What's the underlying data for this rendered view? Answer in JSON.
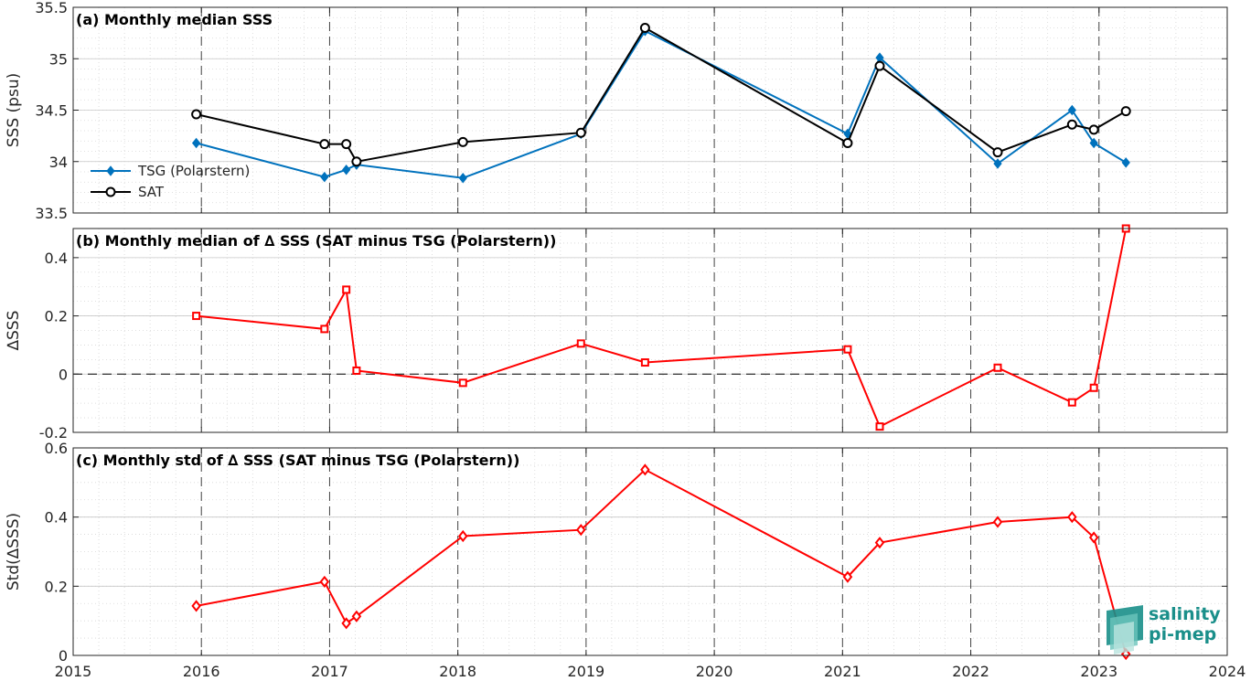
{
  "x_axis": {
    "ticks": [
      "2015",
      "2016",
      "2017",
      "2018",
      "2019",
      "2020",
      "2021",
      "2022",
      "2023",
      "2024"
    ]
  },
  "logo": {
    "line1": "salinity",
    "line2": "pi-mep"
  },
  "chart_data": [
    {
      "type": "line",
      "title": "(a) Monthly median SSS",
      "ylabel": "SSS (psu)",
      "xlim": [
        2015,
        2024
      ],
      "ylim": [
        33.5,
        35.5
      ],
      "yticks": [
        "33.5",
        "34",
        "34.5",
        "35",
        "35.5"
      ],
      "grid": true,
      "legend": "left",
      "series": [
        {
          "name": "TSG (Polarstern)",
          "color": "#0072BD",
          "marker": "diamond",
          "x": [
            2015.96,
            2016.96,
            2017.13,
            2017.21,
            2018.04,
            2018.96,
            2019.46,
            2021.04,
            2021.29,
            2022.21,
            2022.79,
            2022.96,
            2023.21
          ],
          "y": [
            34.18,
            33.85,
            33.92,
            33.97,
            33.84,
            34.27,
            35.27,
            34.27,
            35.01,
            33.98,
            34.5,
            34.18,
            33.99
          ]
        },
        {
          "name": "SAT",
          "color": "#000000",
          "marker": "circle",
          "x": [
            2015.96,
            2016.96,
            2017.13,
            2017.21,
            2018.04,
            2018.96,
            2019.46,
            2021.04,
            2021.29,
            2022.21,
            2022.79,
            2022.96,
            2023.21
          ],
          "y": [
            34.46,
            34.17,
            34.17,
            34.0,
            34.19,
            34.28,
            35.3,
            34.18,
            34.93,
            34.09,
            34.36,
            34.31,
            34.49
          ]
        }
      ]
    },
    {
      "type": "line",
      "title": "(b) Monthly median of ∆ SSS (SAT minus TSG (Polarstern))",
      "ylabel": "∆SSS",
      "xlim": [
        2015,
        2024
      ],
      "ylim": [
        -0.2,
        0.5
      ],
      "yticks": [
        "-0.2",
        "0",
        "0.2",
        "0.4"
      ],
      "grid": true,
      "series": [
        {
          "color": "#FF0000",
          "marker": "square",
          "x": [
            2015.96,
            2016.96,
            2017.13,
            2017.21,
            2018.04,
            2018.96,
            2019.46,
            2021.04,
            2021.29,
            2022.21,
            2022.79,
            2022.96,
            2023.21
          ],
          "y": [
            0.2,
            0.155,
            0.29,
            0.012,
            -0.03,
            0.105,
            0.04,
            0.085,
            -0.18,
            0.022,
            -0.097,
            -0.047,
            0.5
          ]
        }
      ]
    },
    {
      "type": "line",
      "title": "(c) Monthly std of ∆ SSS (SAT minus TSG (Polarstern))",
      "ylabel": "Std(∆SSS)",
      "xlim": [
        2015,
        2024
      ],
      "ylim": [
        0,
        0.6
      ],
      "yticks": [
        "0",
        "0.2",
        "0.4",
        "0.6"
      ],
      "grid": true,
      "series": [
        {
          "color": "#FF0000",
          "marker": "diamond",
          "x": [
            2015.96,
            2016.96,
            2017.13,
            2017.21,
            2018.04,
            2018.96,
            2019.46,
            2021.04,
            2021.29,
            2022.21,
            2022.79,
            2022.96,
            2023.21
          ],
          "y": [
            0.143,
            0.213,
            0.093,
            0.113,
            0.345,
            0.363,
            0.537,
            0.227,
            0.326,
            0.386,
            0.4,
            0.341,
            0.004
          ]
        }
      ]
    }
  ]
}
